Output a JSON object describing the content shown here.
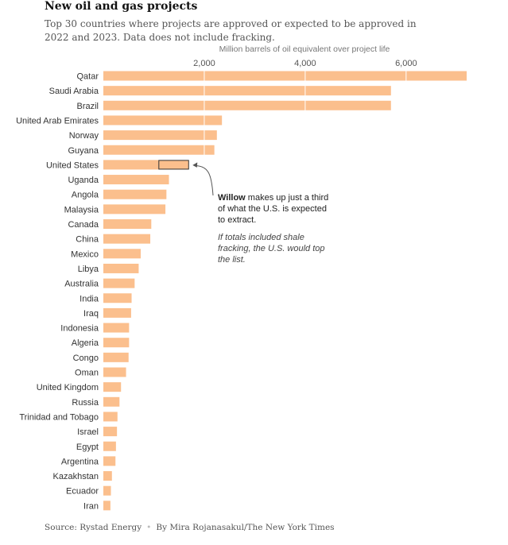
{
  "title": "New oil and gas projects",
  "subtitle": "Top 30 countries where projects are approved or expected to be approved in 2022 and 2023. Data does not include fracking.",
  "annotation": {
    "bold": "Willow",
    "text": " makes up just a third of what the U.S. is expected to extract.",
    "note": "If totals included shale fracking, the U.S. would top the list."
  },
  "footer": {
    "source": "Source: Rystad Energy",
    "byline": "By Mira Rojanasakul/The New York Times"
  },
  "colors": {
    "bar": "#fbbf8d",
    "highlight_stroke": "#333333",
    "gridline": "#ffffff",
    "text": "#333333"
  },
  "chart_data": {
    "type": "bar",
    "orientation": "horizontal",
    "xlabel": "Million barrels of oil equivalent over project life",
    "xticks": [
      2000,
      4000,
      6000
    ],
    "xtick_labels": [
      "2,000",
      "4,000",
      "6,000"
    ],
    "xlim": [
      0,
      7200
    ],
    "grid": true,
    "categories": [
      "Qatar",
      "Saudi Arabia",
      "Brazil",
      "United Arab Emirates",
      "Norway",
      "Guyana",
      "United States",
      "Uganda",
      "Angola",
      "Malaysia",
      "Canada",
      "China",
      "Mexico",
      "Libya",
      "Australia",
      "India",
      "Iraq",
      "Indonesia",
      "Algeria",
      "Congo",
      "Oman",
      "United Kingdom",
      "Russia",
      "Trinidad and Tobago",
      "Israel",
      "Egypt",
      "Argentina",
      "Kazakhstan",
      "Ecuador",
      "Iran"
    ],
    "values": [
      7200,
      5700,
      5700,
      2350,
      2250,
      2200,
      1690,
      1300,
      1250,
      1230,
      950,
      930,
      740,
      700,
      620,
      560,
      550,
      510,
      510,
      500,
      450,
      350,
      320,
      280,
      270,
      250,
      240,
      170,
      150,
      140
    ],
    "highlight": {
      "category": "United States",
      "label": "Willow",
      "start": 1100,
      "end": 1690
    }
  }
}
